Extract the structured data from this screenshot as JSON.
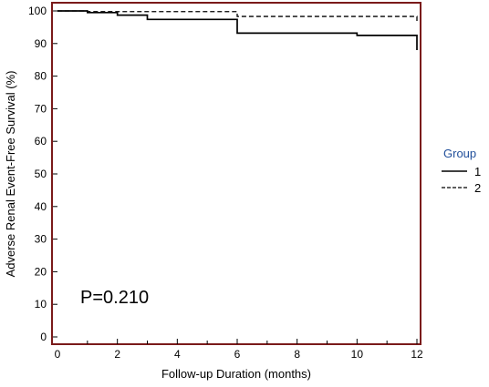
{
  "chart_data": {
    "type": "line",
    "title": "",
    "xlabel": "Follow-up Duration (months)",
    "ylabel": "Adverse Renal Event-Free Survival (%)",
    "xlim": [
      0,
      12
    ],
    "ylim": [
      0,
      100
    ],
    "xticks": [
      "0",
      "2",
      "4",
      "6",
      "8",
      "10",
      "12"
    ],
    "yticks": [
      "0",
      "10",
      "20",
      "30",
      "40",
      "50",
      "60",
      "70",
      "80",
      "90",
      "100"
    ],
    "step": true,
    "grid": false,
    "annotation": "P=0.210",
    "legend": {
      "title": "Group",
      "position": "right",
      "title_color": "#1f4e9a",
      "entries": [
        {
          "label": "1",
          "style": "solid"
        },
        {
          "label": "2",
          "style": "dashed"
        }
      ]
    },
    "frame_color": "#7a1a1a",
    "series": [
      {
        "name": "1",
        "style": "solid",
        "x": [
          0,
          1,
          2,
          3,
          6,
          10,
          12
        ],
        "y": [
          100,
          99.5,
          98.7,
          97.4,
          93.2,
          92.5,
          88
        ]
      },
      {
        "name": "2",
        "style": "dashed",
        "x": [
          0,
          1,
          6,
          12
        ],
        "y": [
          100,
          99.8,
          98.3,
          96.5
        ]
      }
    ]
  }
}
